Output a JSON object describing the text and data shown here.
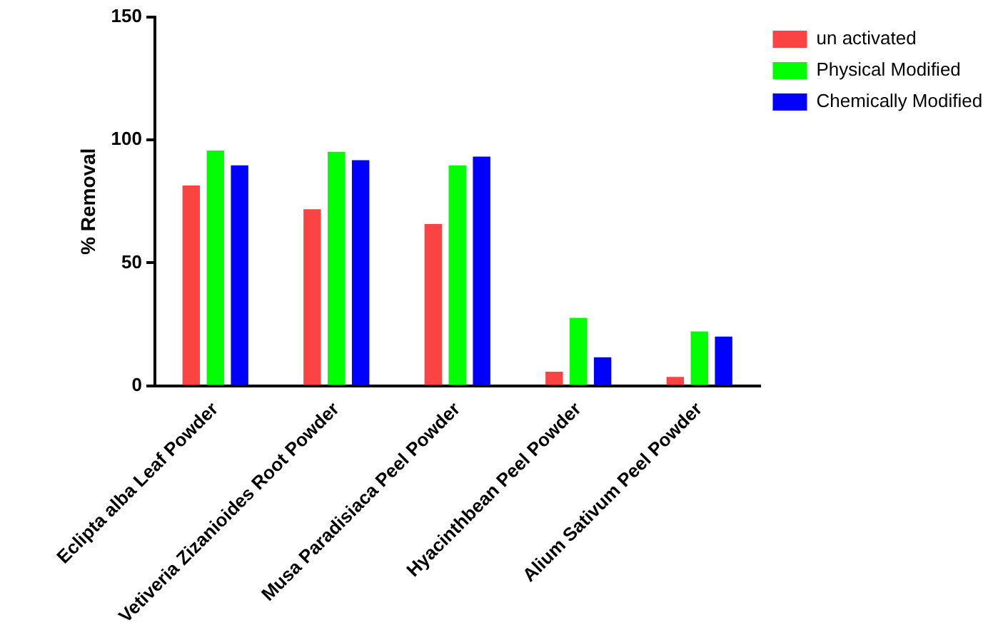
{
  "chart_data": {
    "type": "bar",
    "ylabel": "% Removal",
    "categories": [
      "Eclipta alba Leaf Powder",
      "Vetiveria Zizanioides Root Powder",
      "Musa Paradisiaca Peel Powder",
      "Hyacinthbean Peel Powder",
      "Alium Sativum Peel Powder"
    ],
    "series": [
      {
        "name": "un activated",
        "color": "#fa4343",
        "values": [
          81.5,
          71.8,
          65.8,
          5.7,
          3.6
        ]
      },
      {
        "name": "Physical Modified",
        "color": "#00ff00",
        "values": [
          95.7,
          95.2,
          89.7,
          27.6,
          22.1
        ]
      },
      {
        "name": "Chemically Modified",
        "color": "#0000ff",
        "values": [
          89.7,
          91.8,
          93.2,
          11.6,
          20.0
        ]
      }
    ],
    "ylim": [
      0,
      150
    ],
    "yticks": [
      0,
      50,
      100,
      150
    ],
    "grid": false,
    "legend": "top right"
  }
}
